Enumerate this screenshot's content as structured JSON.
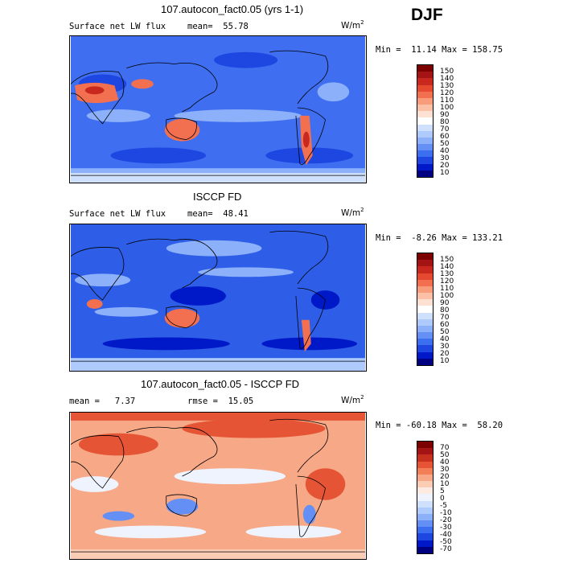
{
  "season": "DJF",
  "units_base": "W/m",
  "units_exp": "2",
  "palette_seq": [
    "#000080",
    "#0019c8",
    "#1e46e1",
    "#3c6ef0",
    "#6490f5",
    "#8cb0fa",
    "#afcafc",
    "#cfe0fd",
    "#ffffff",
    "#fde1d2",
    "#fbc0a5",
    "#f89c7c",
    "#f27050",
    "#e54a30",
    "#c8281e",
    "#a51414",
    "#7d0000"
  ],
  "palette_div": [
    "#000080",
    "#0019c8",
    "#1e46e1",
    "#3c6ef0",
    "#6490f5",
    "#8cb0fa",
    "#afcafc",
    "#cfe0fd",
    "#eef3fe",
    "#fdebe1",
    "#fbcdb4",
    "#f8a886",
    "#f27f58",
    "#e55535",
    "#c8301e",
    "#a51414",
    "#7d0000"
  ],
  "panels": [
    {
      "title": "107.autocon_fact0.05 (yrs 1-1)",
      "variable": "Surface net LW flux",
      "stat": "mean=  55.78",
      "minmax": "Min =  11.14 Max = 158.75",
      "colorbar_labels": [
        "150",
        "140",
        "130",
        "120",
        "110",
        "100",
        "90",
        "80",
        "70",
        "60",
        "50",
        "40",
        "30",
        "20",
        "10"
      ],
      "map_base": "#3f6ff0"
    },
    {
      "title": "ISCCP FD",
      "variable": "Surface net LW flux",
      "stat": "mean=  48.41",
      "minmax": "Min =  -8.26 Max = 133.21",
      "colorbar_labels": [
        "150",
        "140",
        "130",
        "120",
        "110",
        "100",
        "90",
        "80",
        "70",
        "60",
        "50",
        "40",
        "30",
        "20",
        "10"
      ],
      "map_base": "#2e5ee8"
    },
    {
      "title": "107.autocon_fact0.05 - ISCCP FD",
      "variable": "mean =   7.37",
      "stat": "rmse =  15.05",
      "minmax": "Min = -60.18 Max =  58.20",
      "colorbar_labels": [
        "70",
        "50",
        "40",
        "30",
        "20",
        "10",
        "5",
        "0",
        "-5",
        "-10",
        "-20",
        "-30",
        "-40",
        "-50",
        "-70"
      ],
      "map_base": "#f6a887"
    }
  ]
}
